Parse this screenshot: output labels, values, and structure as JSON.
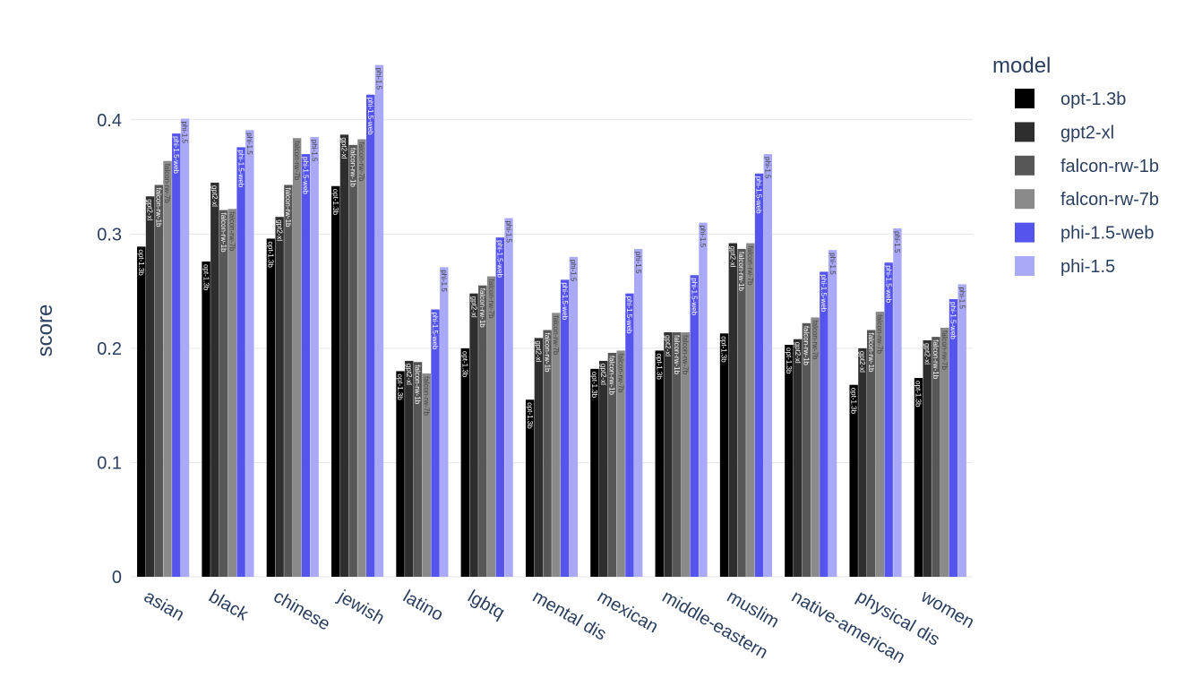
{
  "chart_data": {
    "type": "bar",
    "ylabel": "score",
    "ylim": [
      0,
      0.45
    ],
    "yticks": [
      0,
      0.1,
      0.2,
      0.3,
      0.4
    ],
    "ytick_labels": [
      "0",
      "0.1",
      "0.2",
      "0.3",
      "0.4"
    ],
    "legend_title": "model",
    "legend_position": "right",
    "grid": true,
    "categories": [
      "asian",
      "black",
      "chinese",
      "jewish",
      "latino",
      "lgbtq",
      "mental dis",
      "mexican",
      "middle-eastern",
      "muslim",
      "native-american",
      "physical dis",
      "women"
    ],
    "series": [
      {
        "name": "opt-1.3b",
        "color": "#000000",
        "label_color": "#ffffff",
        "values": [
          0.289,
          0.276,
          0.296,
          0.342,
          0.18,
          0.2,
          0.155,
          0.182,
          0.198,
          0.213,
          0.203,
          0.168,
          0.174
        ]
      },
      {
        "name": "gpt2-xl",
        "color": "#2e2e2e",
        "label_color": "#ffffff",
        "values": [
          0.333,
          0.345,
          0.315,
          0.387,
          0.189,
          0.248,
          0.209,
          0.189,
          0.214,
          0.292,
          0.208,
          0.2,
          0.207
        ]
      },
      {
        "name": "falcon-rw-1b",
        "color": "#575757",
        "label_color": "#ffffff",
        "values": [
          0.343,
          0.321,
          0.343,
          0.378,
          0.188,
          0.255,
          0.216,
          0.196,
          0.214,
          0.287,
          0.222,
          0.216,
          0.21
        ]
      },
      {
        "name": "falcon-rw-7b",
        "color": "#8a8a8a",
        "label_color": "#444444",
        "values": [
          0.364,
          0.322,
          0.384,
          0.383,
          0.178,
          0.263,
          0.231,
          0.198,
          0.214,
          0.292,
          0.227,
          0.232,
          0.218
        ]
      },
      {
        "name": "phi-1.5-web",
        "color": "#5555ee",
        "label_color": "#ffffff",
        "values": [
          0.388,
          0.376,
          0.37,
          0.422,
          0.234,
          0.297,
          0.26,
          0.248,
          0.264,
          0.353,
          0.267,
          0.275,
          0.243
        ]
      },
      {
        "name": "phi-1.5",
        "color": "#a9a9f7",
        "label_color": "#444444",
        "values": [
          0.401,
          0.391,
          0.385,
          0.448,
          0.271,
          0.314,
          0.28,
          0.287,
          0.31,
          0.37,
          0.286,
          0.305,
          0.256
        ]
      }
    ]
  }
}
